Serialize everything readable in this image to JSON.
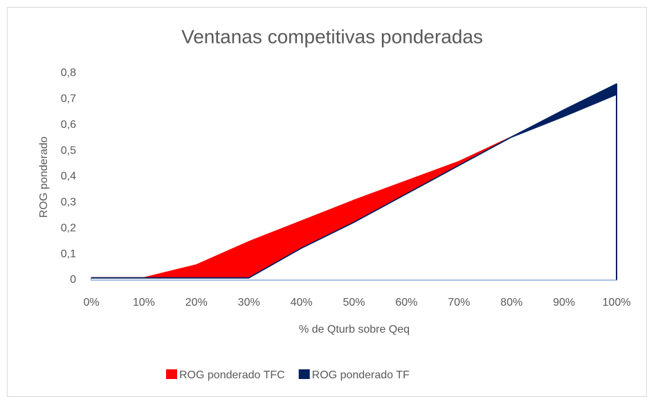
{
  "chart_data": {
    "type": "area",
    "title": "Ventanas competitivas ponderadas",
    "x_label": "% de Qturb sobre Qeq",
    "y_label": "ROG ponderado",
    "categories": [
      "0%",
      "10%",
      "20%",
      "30%",
      "40%",
      "50%",
      "60%",
      "70%",
      "80%",
      "90%",
      "100%"
    ],
    "series": [
      {
        "name": "ROG ponderado TFC",
        "color": "#ff0000",
        "values": [
          0.01,
          0.01,
          0.06,
          0.15,
          0.23,
          0.31,
          0.385,
          0.46,
          0.555,
          0.635,
          0.72
        ]
      },
      {
        "name": "ROG ponderado TF",
        "color": "#002060",
        "values": [
          0.01,
          0.01,
          0.01,
          0.01,
          0.125,
          0.225,
          0.335,
          0.445,
          0.555,
          0.66,
          0.76
        ]
      }
    ],
    "ylim": [
      0,
      0.8
    ],
    "yticks": [
      0,
      {
        "value": 0.1,
        "label": "0,1"
      },
      {
        "value": 0.2,
        "label": "0,2"
      },
      {
        "value": 0.3,
        "label": "0,3"
      },
      {
        "value": 0.4,
        "label": "0,4"
      },
      {
        "value": 0.5,
        "label": "0,5"
      },
      {
        "value": 0.6,
        "label": "0,6"
      },
      {
        "value": 0.7,
        "label": "0,7"
      },
      {
        "value": 0.8,
        "label": "0,8"
      }
    ],
    "legend": "bottom"
  }
}
